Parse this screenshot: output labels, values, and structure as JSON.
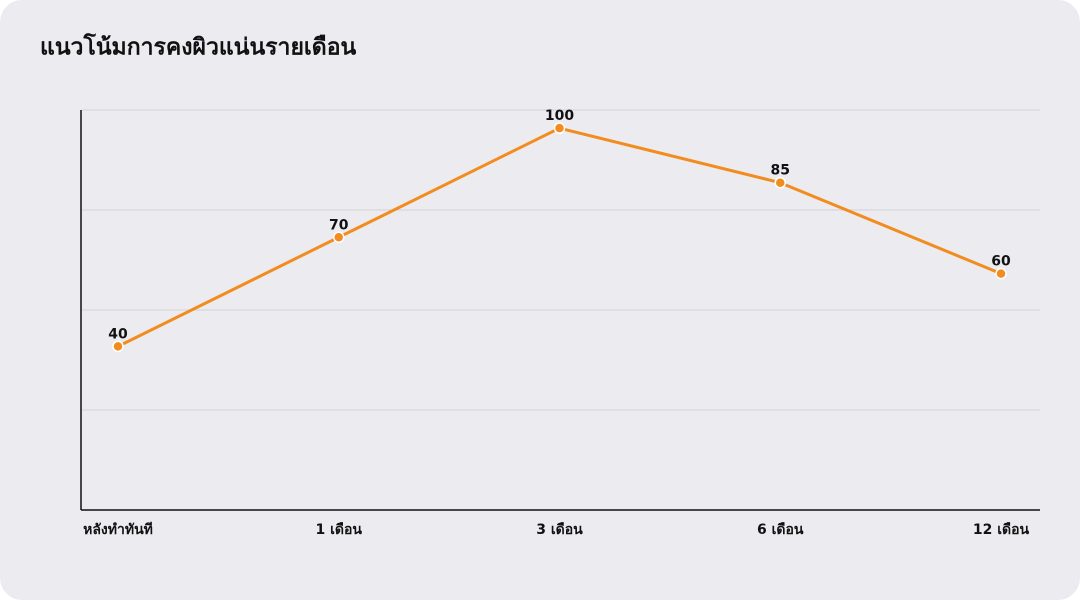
{
  "chart_data": {
    "type": "line",
    "title": "แนวโน้มการคงผิวแน่นรายเดือน",
    "categories": [
      "หลังทำทันที",
      "1 เดือน",
      "3 เดือน",
      "6 เดือน",
      "12 เดือน"
    ],
    "values": [
      40,
      70,
      100,
      85,
      60
    ],
    "color": "#f28c1e",
    "ylim": [
      -5,
      105
    ],
    "grid": true
  }
}
